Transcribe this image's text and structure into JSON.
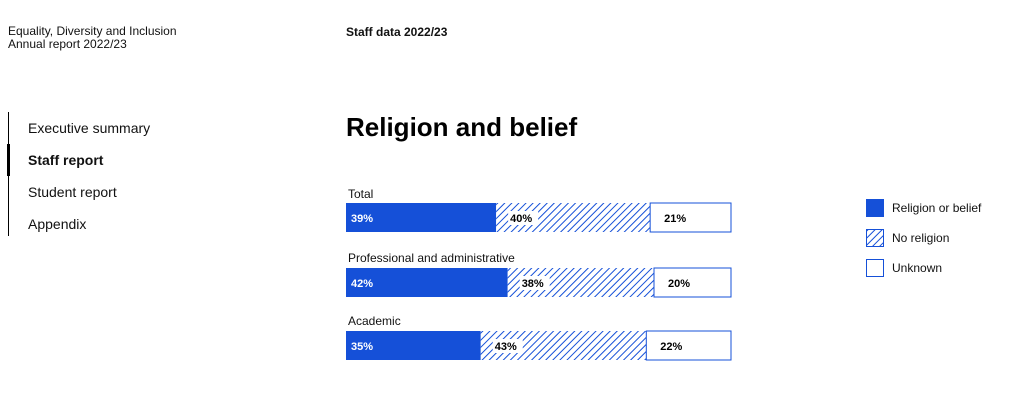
{
  "header": {
    "doc_title_line1": "Equality, Diversity and Inclusion",
    "doc_title_line2": "Annual report 2022/23",
    "section": "Staff data 2022/23"
  },
  "nav": {
    "items": [
      {
        "label": "Executive summary",
        "active": false
      },
      {
        "label": "Staff report",
        "active": true
      },
      {
        "label": "Student report",
        "active": false
      },
      {
        "label": "Appendix",
        "active": false
      }
    ]
  },
  "page": {
    "heading": "Religion and belief"
  },
  "colors": {
    "religion": "#1550d8",
    "hatch": "#1550d8",
    "unknown": "#ffffff",
    "outline": "#1550d8"
  },
  "chart_data": {
    "type": "bar",
    "orientation": "horizontal-stacked-100",
    "title": "",
    "categories": [
      "Total",
      "Professional and administrative",
      "Academic"
    ],
    "series": [
      {
        "name": "Religion or belief",
        "values": [
          39,
          42,
          35
        ],
        "labels": [
          "39%",
          "42%",
          "35%"
        ],
        "fill": "solid"
      },
      {
        "name": "No religion",
        "values": [
          40,
          38,
          43
        ],
        "labels": [
          "40%",
          "38%",
          "43%"
        ],
        "fill": "hatched"
      },
      {
        "name": "Unknown",
        "values": [
          21,
          20,
          22
        ],
        "labels": [
          "21%",
          "20%",
          "22%"
        ],
        "fill": "outline"
      }
    ],
    "xlim": [
      0,
      100
    ],
    "legend_position": "right",
    "grid": false
  }
}
